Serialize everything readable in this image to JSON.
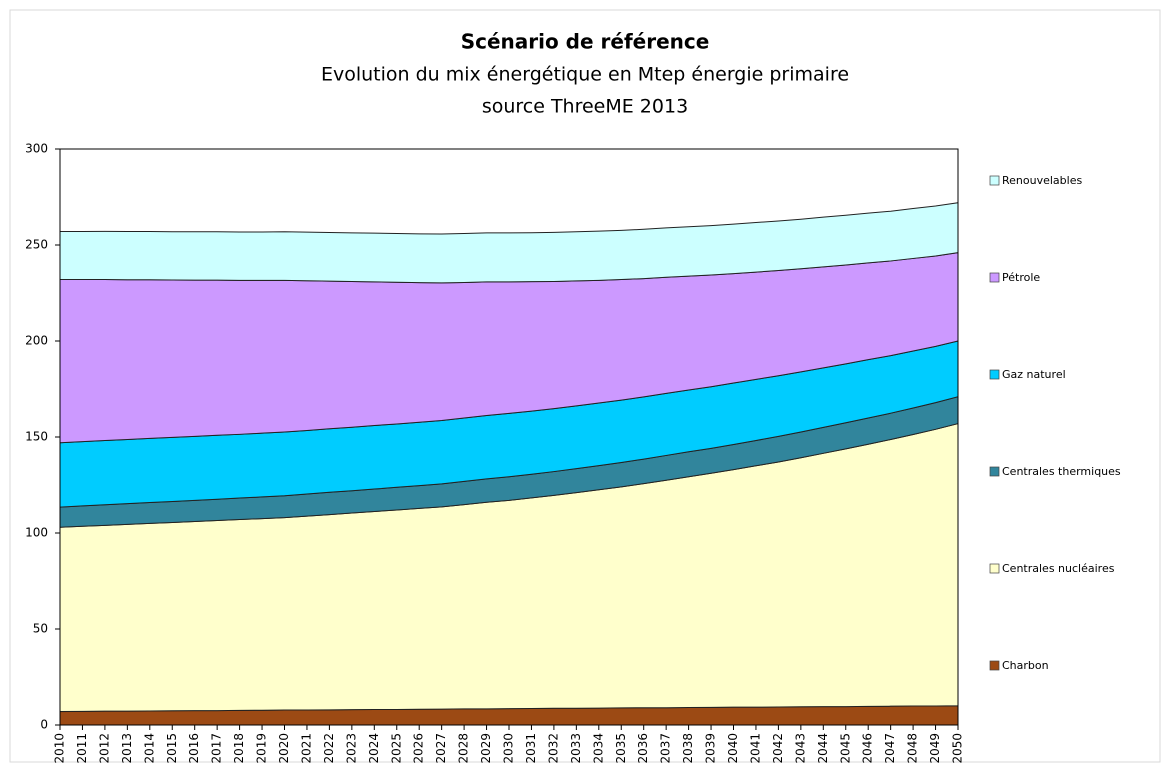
{
  "chart_data": {
    "type": "stacked_area",
    "title": "Scénario de référence",
    "subtitle": "Evolution du mix énergétique en Mtep énergie primaire",
    "source": "source ThreeME 2013",
    "categories": [
      "2010",
      "2011",
      "2012",
      "2013",
      "2014",
      "2015",
      "2016",
      "2017",
      "2018",
      "2019",
      "2020",
      "2021",
      "2022",
      "2023",
      "2024",
      "2025",
      "2026",
      "2027",
      "2028",
      "2029",
      "2030",
      "2031",
      "2032",
      "2033",
      "2034",
      "2035",
      "2036",
      "2037",
      "2038",
      "2039",
      "2040",
      "2041",
      "2042",
      "2043",
      "2044",
      "2045",
      "2046",
      "2047",
      "2048",
      "2049",
      "2050"
    ],
    "ylim": [
      0,
      300
    ],
    "yticks": [
      0,
      50,
      100,
      150,
      200,
      250,
      300
    ],
    "grid": false,
    "legend": "right",
    "series": [
      {
        "name": "Charbon",
        "color": "#9c4a14",
        "values": [
          7.0,
          7.1,
          7.2,
          7.2,
          7.3,
          7.4,
          7.5,
          7.5,
          7.6,
          7.7,
          7.8,
          7.8,
          7.9,
          8.0,
          8.1,
          8.1,
          8.2,
          8.3,
          8.4,
          8.4,
          8.5,
          8.6,
          8.7,
          8.7,
          8.8,
          8.9,
          9.0,
          9.0,
          9.1,
          9.2,
          9.3,
          9.3,
          9.4,
          9.5,
          9.6,
          9.6,
          9.7,
          9.8,
          9.9,
          9.9,
          10.0
        ]
      },
      {
        "name": "Centrales nucléaires",
        "color": "#ffffcc",
        "values": [
          96.0,
          96.4,
          96.8,
          97.3,
          97.7,
          98.1,
          98.5,
          99.0,
          99.4,
          99.8,
          100.2,
          101.0,
          101.7,
          102.4,
          103.1,
          103.9,
          104.6,
          105.3,
          106.4,
          107.6,
          108.5,
          109.7,
          110.9,
          112.3,
          113.7,
          115.1,
          116.7,
          118.5,
          120.2,
          121.9,
          123.7,
          125.7,
          127.6,
          129.7,
          131.9,
          134.2,
          136.5,
          138.9,
          141.4,
          144.1,
          147.0
        ]
      },
      {
        "name": "Centrales thermiques",
        "color": "#31859c",
        "values": [
          10.5,
          10.6,
          10.7,
          10.8,
          10.9,
          10.9,
          11.0,
          11.1,
          11.2,
          11.3,
          11.4,
          11.5,
          11.6,
          11.6,
          11.7,
          11.8,
          11.9,
          12.0,
          12.1,
          12.2,
          12.3,
          12.3,
          12.4,
          12.5,
          12.6,
          12.7,
          12.8,
          12.9,
          13.0,
          13.0,
          13.1,
          13.2,
          13.3,
          13.4,
          13.5,
          13.6,
          13.7,
          13.7,
          13.8,
          13.9,
          14.0
        ]
      },
      {
        "name": "Gaz naturel",
        "color": "#00ccff",
        "values": [
          33.5,
          33.5,
          33.5,
          33.4,
          33.4,
          33.4,
          33.3,
          33.3,
          33.2,
          33.2,
          33.2,
          33.1,
          33.1,
          33.1,
          33.1,
          33.0,
          33.0,
          33.0,
          33.0,
          33.0,
          33.0,
          32.9,
          32.8,
          32.7,
          32.6,
          32.5,
          32.4,
          32.3,
          32.2,
          32.1,
          32.0,
          31.8,
          31.6,
          31.3,
          31.0,
          30.7,
          30.4,
          30.0,
          29.7,
          29.3,
          29.0
        ]
      },
      {
        "name": "Pétrole",
        "color": "#cc99ff",
        "values": [
          85.0,
          84.4,
          83.8,
          83.2,
          82.6,
          82.0,
          81.4,
          80.8,
          80.2,
          79.6,
          79.0,
          78.0,
          76.9,
          75.9,
          74.8,
          73.8,
          72.7,
          71.7,
          70.6,
          69.6,
          68.5,
          67.4,
          66.2,
          65.1,
          63.9,
          62.8,
          61.6,
          60.5,
          59.3,
          58.2,
          57.0,
          55.9,
          54.8,
          53.7,
          52.6,
          51.5,
          50.4,
          49.3,
          48.2,
          47.1,
          46.0
        ]
      },
      {
        "name": "Renouvelables",
        "color": "#ccffff",
        "values": [
          25.0,
          25.0,
          25.1,
          25.1,
          25.1,
          25.1,
          25.2,
          25.2,
          25.2,
          25.2,
          25.3,
          25.3,
          25.3,
          25.3,
          25.4,
          25.4,
          25.4,
          25.4,
          25.5,
          25.5,
          25.5,
          25.5,
          25.6,
          25.6,
          25.6,
          25.6,
          25.7,
          25.7,
          25.7,
          25.7,
          25.8,
          25.8,
          25.8,
          25.8,
          25.9,
          25.9,
          25.9,
          25.9,
          26.0,
          26.0,
          26.0
        ]
      }
    ]
  }
}
